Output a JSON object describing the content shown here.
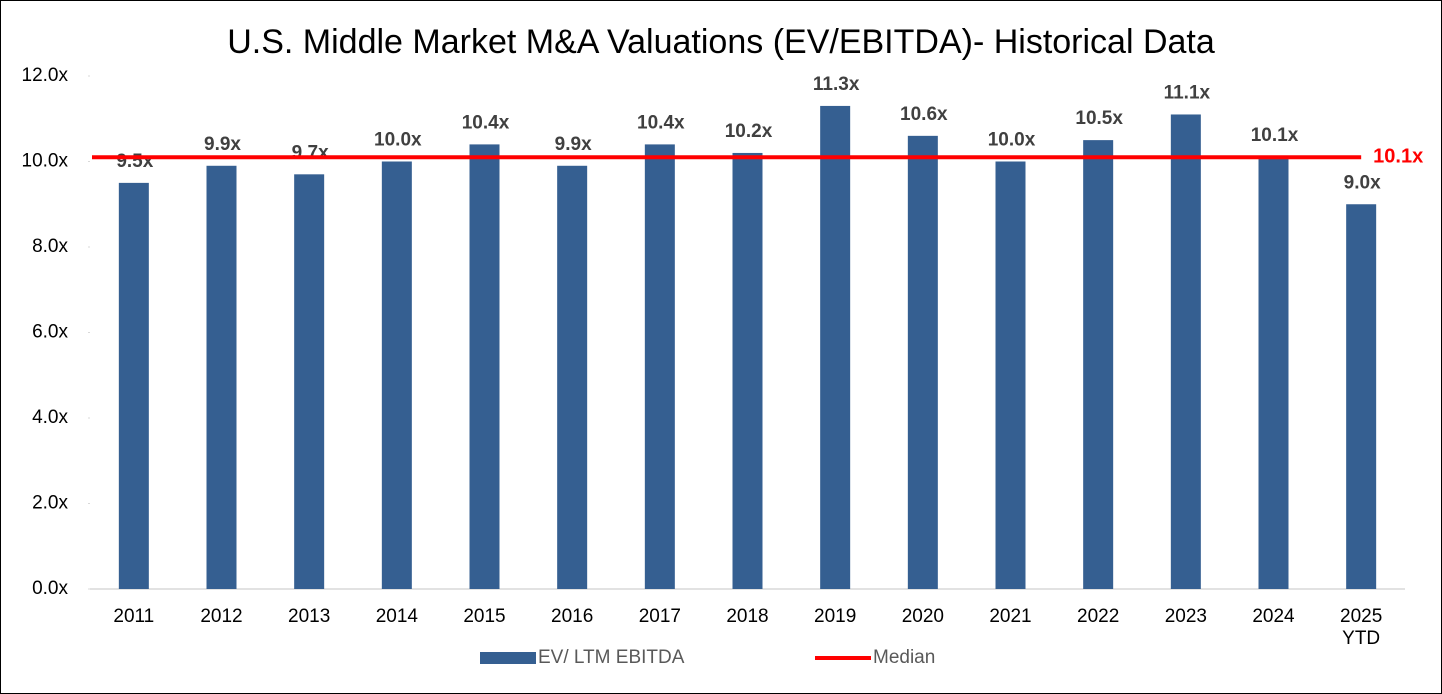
{
  "chart_data": {
    "type": "bar",
    "title": "U.S. Middle Market M&A Valuations (EV/EBITDA)- Historical Data",
    "categories": [
      "2011",
      "2012",
      "2013",
      "2014",
      "2015",
      "2016",
      "2017",
      "2018",
      "2019",
      "2020",
      "2021",
      "2022",
      "2023",
      "2024",
      "2025 YTD"
    ],
    "series": [
      {
        "name": "EV/ LTM EBITDA",
        "color": "#355f91",
        "values": [
          9.5,
          9.9,
          9.7,
          10.0,
          10.4,
          9.9,
          10.4,
          10.2,
          11.3,
          10.6,
          10.0,
          10.5,
          11.1,
          10.1,
          9.0
        ],
        "value_labels": [
          "9.5x",
          "9.9x",
          "9.7x",
          "10.0x",
          "10.4x",
          "9.9x",
          "10.4x",
          "10.2x",
          "11.3x",
          "10.6x",
          "10.0x",
          "10.5x",
          "11.1x",
          "10.1x",
          "9.0x"
        ]
      }
    ],
    "reference_line": {
      "name": "Median",
      "color": "#ff0000",
      "value": 10.1,
      "value_label": "10.1x"
    },
    "ylim": [
      0,
      12
    ],
    "yticks": [
      {
        "value": 0,
        "label": "0.0x"
      },
      {
        "value": 2,
        "label": "2.0x"
      },
      {
        "value": 4,
        "label": "4.0x"
      },
      {
        "value": 6,
        "label": "6.0x"
      },
      {
        "value": 8,
        "label": "8.0x"
      },
      {
        "value": 10,
        "label": "10.0x"
      },
      {
        "value": 12,
        "label": "12.0x"
      }
    ],
    "grid": false,
    "legend": "bottom"
  }
}
